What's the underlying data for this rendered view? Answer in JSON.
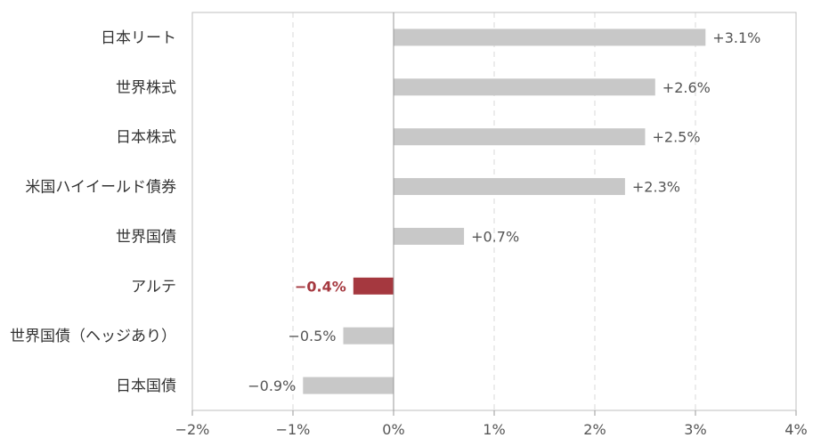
{
  "chart_data": {
    "type": "bar",
    "orientation": "horizontal",
    "categories": [
      "日本リート",
      "世界株式",
      "日本株式",
      "米国ハイイールド債券",
      "世界国債",
      "アルテ",
      "世界国債（ヘッジあり）",
      "日本国債"
    ],
    "values": [
      3.1,
      2.6,
      2.5,
      2.3,
      0.7,
      -0.4,
      -0.5,
      -0.9
    ],
    "value_labels": [
      "+3.1%",
      "+2.6%",
      "+2.5%",
      "+2.3%",
      "+0.7%",
      "−0.4%",
      "−0.5%",
      "−0.9%"
    ],
    "highlight_index": 5,
    "colors": {
      "bar": "#c8c8c8",
      "highlight": "#a5383f",
      "grid": "#d9d9d9",
      "axis": "#999999",
      "frame": "#bfbfbf"
    },
    "xlim": [
      -2,
      4
    ],
    "xticks": [
      -2,
      -1,
      0,
      1,
      2,
      3,
      4
    ],
    "xtick_labels": [
      "−2%",
      "−1%",
      "0%",
      "1%",
      "2%",
      "3%",
      "4%"
    ],
    "grid": "vertical dashed",
    "title": "",
    "xlabel": "",
    "ylabel": ""
  }
}
